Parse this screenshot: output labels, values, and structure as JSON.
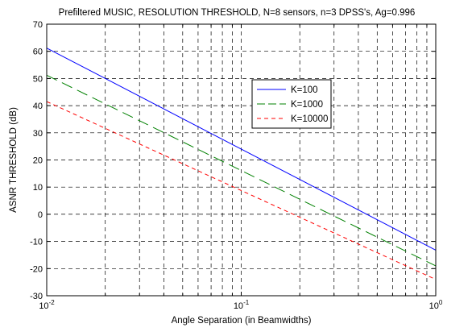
{
  "chart_data": {
    "type": "line",
    "title": "Prefiltered MUSIC, RESOLUTION THRESHOLD, N=8 sensors, n=3 DPSS's, Ag=0.996",
    "xlabel": "Angle Separation (in Beamwidths)",
    "ylabel": "ASNR THRESHOLD (dB)",
    "xscale": "log",
    "xlim": [
      0.01,
      1
    ],
    "ylim": [
      -30,
      70
    ],
    "grid": true,
    "legend_position": "upper-right",
    "x_ticks": [
      {
        "value": 0.01,
        "base": "10",
        "exp": "-2"
      },
      {
        "value": 0.1,
        "base": "10",
        "exp": "-1"
      },
      {
        "value": 1,
        "base": "10",
        "exp": "0"
      }
    ],
    "y_ticks": [
      "-30",
      "-20",
      "-10",
      "0",
      "10",
      "20",
      "30",
      "40",
      "50",
      "60",
      "70"
    ],
    "series": [
      {
        "name": "K=100",
        "color": "#0000ff",
        "dash": "solid",
        "x": [
          0.01,
          1
        ],
        "y": [
          61.2,
          -13.2
        ]
      },
      {
        "name": "K=1000",
        "color": "#008000",
        "dash": "longdash",
        "x": [
          0.01,
          1
        ],
        "y": [
          51.2,
          -19.0
        ]
      },
      {
        "name": "K=10000",
        "color": "#ff0000",
        "dash": "shortdash",
        "x": [
          0.01,
          1
        ],
        "y": [
          41.5,
          -24.0
        ]
      }
    ]
  }
}
